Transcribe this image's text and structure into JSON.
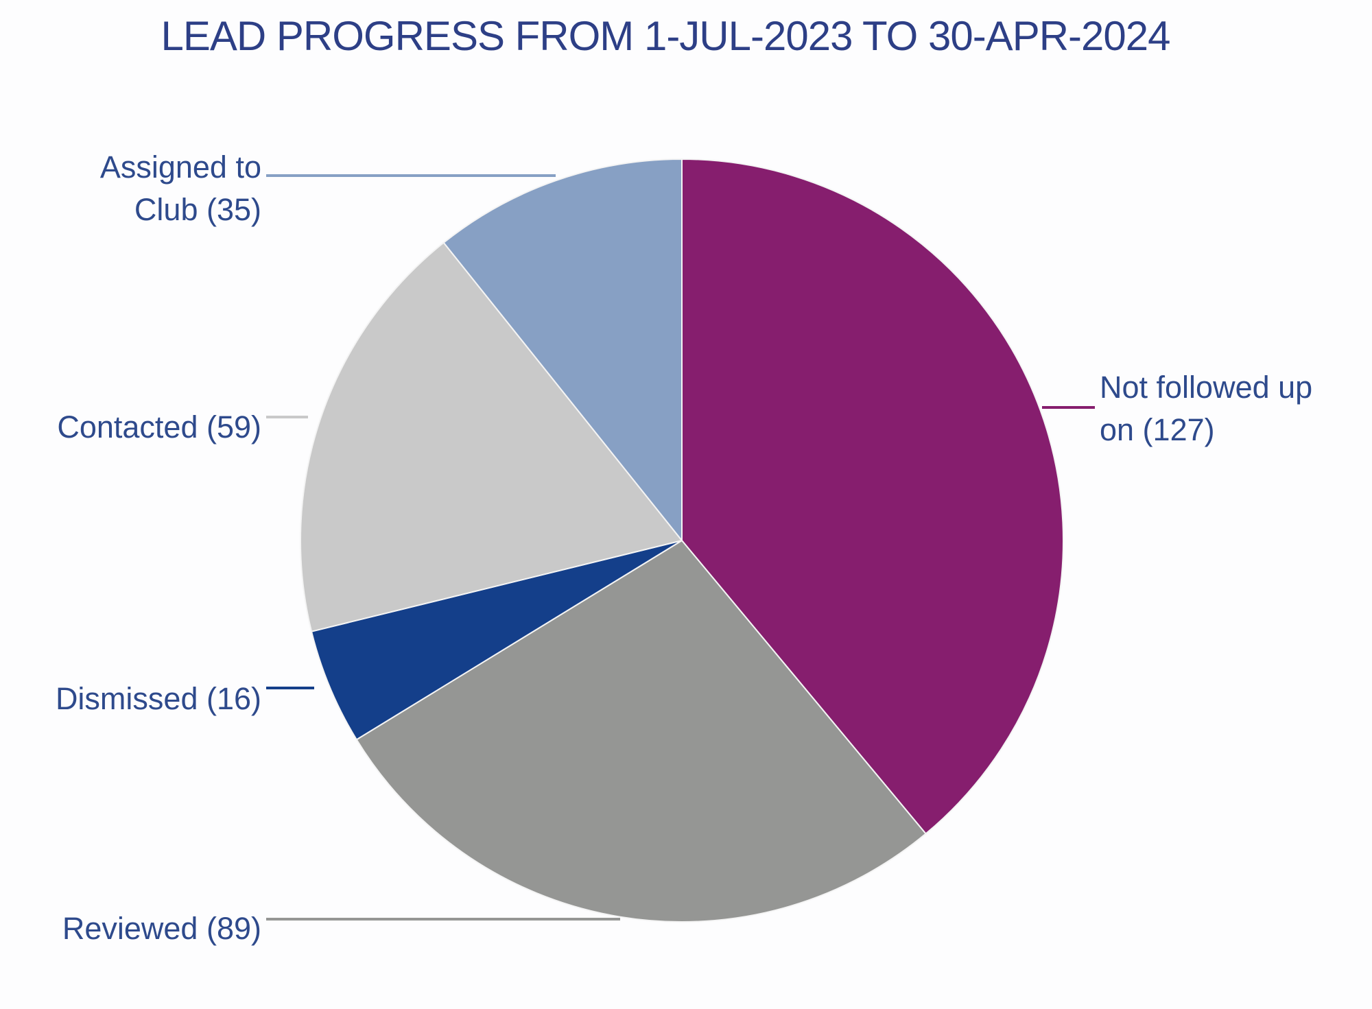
{
  "chart_data": {
    "type": "pie",
    "title": "LEAD PROGRESS FROM 1-JUL-2023 TO 30-APR-2024",
    "start_angle": "12 o'clock",
    "direction": "clockwise",
    "slices": [
      {
        "label_lines": [
          "Not followed up",
          "on (127)"
        ],
        "category": "Not followed up on",
        "value": 127,
        "color": "#861e6e"
      },
      {
        "label_lines": [
          "Reviewed (89)"
        ],
        "category": "Reviewed",
        "value": 89,
        "color": "#959694"
      },
      {
        "label_lines": [
          "Dismissed (16)"
        ],
        "category": "Dismissed",
        "value": 16,
        "color": "#143f8a"
      },
      {
        "label_lines": [
          "Contacted (59)"
        ],
        "category": "Contacted",
        "value": 59,
        "color": "#c9c9c9"
      },
      {
        "label_lines": [
          "Assigned to",
          "Club (35)"
        ],
        "category": "Assigned to Club",
        "value": 35,
        "color": "#87a0c4"
      }
    ],
    "legend": "none"
  }
}
